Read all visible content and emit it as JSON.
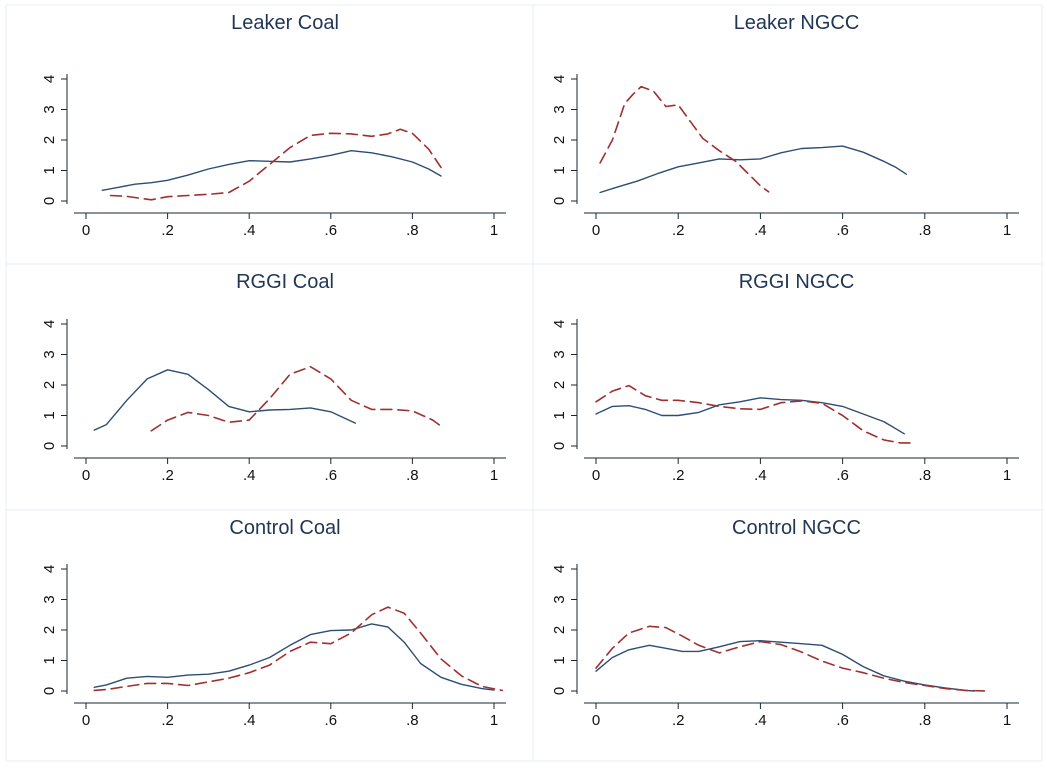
{
  "chart_data": [
    {
      "type": "line",
      "title": "Leaker Coal",
      "xlim": [
        0,
        1
      ],
      "ylim": [
        0,
        4
      ],
      "x_ticks": [
        0,
        0.2,
        0.4,
        0.6,
        0.8,
        1
      ],
      "x_tick_labels": [
        "0",
        ".2",
        ".4",
        ".6",
        ".8",
        "1"
      ],
      "y_ticks": [
        0,
        1,
        2,
        3,
        4
      ],
      "y_tick_labels": [
        "0",
        "1",
        "2",
        "3",
        "4"
      ],
      "series": [
        {
          "style": "solid",
          "color": "#2c4e72",
          "points": [
            [
              0.04,
              0.35
            ],
            [
              0.08,
              0.45
            ],
            [
              0.12,
              0.55
            ],
            [
              0.16,
              0.6
            ],
            [
              0.2,
              0.68
            ],
            [
              0.25,
              0.85
            ],
            [
              0.3,
              1.05
            ],
            [
              0.35,
              1.2
            ],
            [
              0.4,
              1.32
            ],
            [
              0.45,
              1.3
            ],
            [
              0.5,
              1.28
            ],
            [
              0.55,
              1.38
            ],
            [
              0.6,
              1.5
            ],
            [
              0.65,
              1.65
            ],
            [
              0.7,
              1.58
            ],
            [
              0.75,
              1.45
            ],
            [
              0.8,
              1.28
            ],
            [
              0.84,
              1.05
            ],
            [
              0.87,
              0.82
            ]
          ]
        },
        {
          "style": "dashed",
          "color": "#a03030",
          "points": [
            [
              0.06,
              0.18
            ],
            [
              0.1,
              0.15
            ],
            [
              0.16,
              0.04
            ],
            [
              0.2,
              0.14
            ],
            [
              0.25,
              0.18
            ],
            [
              0.3,
              0.22
            ],
            [
              0.35,
              0.28
            ],
            [
              0.4,
              0.65
            ],
            [
              0.45,
              1.2
            ],
            [
              0.5,
              1.75
            ],
            [
              0.55,
              2.15
            ],
            [
              0.6,
              2.22
            ],
            [
              0.65,
              2.2
            ],
            [
              0.7,
              2.12
            ],
            [
              0.74,
              2.2
            ],
            [
              0.77,
              2.35
            ],
            [
              0.8,
              2.22
            ],
            [
              0.84,
              1.7
            ],
            [
              0.87,
              1.1
            ]
          ]
        }
      ]
    },
    {
      "type": "line",
      "title": "Leaker NGCC",
      "xlim": [
        0,
        1
      ],
      "ylim": [
        0,
        4
      ],
      "x_ticks": [
        0,
        0.2,
        0.4,
        0.6,
        0.8,
        1
      ],
      "x_tick_labels": [
        "0",
        ".2",
        ".4",
        ".6",
        ".8",
        "1"
      ],
      "y_ticks": [
        0,
        1,
        2,
        3,
        4
      ],
      "y_tick_labels": [
        "0",
        "1",
        "2",
        "3",
        "4"
      ],
      "series": [
        {
          "style": "solid",
          "color": "#2c4e72",
          "points": [
            [
              0.01,
              0.28
            ],
            [
              0.05,
              0.45
            ],
            [
              0.1,
              0.65
            ],
            [
              0.15,
              0.9
            ],
            [
              0.2,
              1.12
            ],
            [
              0.25,
              1.25
            ],
            [
              0.3,
              1.38
            ],
            [
              0.35,
              1.35
            ],
            [
              0.4,
              1.38
            ],
            [
              0.45,
              1.58
            ],
            [
              0.5,
              1.72
            ],
            [
              0.55,
              1.75
            ],
            [
              0.6,
              1.8
            ],
            [
              0.65,
              1.6
            ],
            [
              0.7,
              1.3
            ],
            [
              0.73,
              1.1
            ],
            [
              0.755,
              0.88
            ]
          ]
        },
        {
          "style": "dashed",
          "color": "#a03030",
          "points": [
            [
              0.01,
              1.25
            ],
            [
              0.04,
              2.0
            ],
            [
              0.07,
              3.2
            ],
            [
              0.09,
              3.5
            ],
            [
              0.11,
              3.75
            ],
            [
              0.14,
              3.6
            ],
            [
              0.17,
              3.1
            ],
            [
              0.2,
              3.15
            ],
            [
              0.23,
              2.6
            ],
            [
              0.26,
              2.05
            ],
            [
              0.3,
              1.65
            ],
            [
              0.34,
              1.3
            ],
            [
              0.37,
              0.9
            ],
            [
              0.4,
              0.5
            ],
            [
              0.42,
              0.3
            ]
          ]
        }
      ]
    },
    {
      "type": "line",
      "title": "RGGI Coal",
      "xlim": [
        0,
        1
      ],
      "ylim": [
        0,
        4
      ],
      "x_ticks": [
        0,
        0.2,
        0.4,
        0.6,
        0.8,
        1
      ],
      "x_tick_labels": [
        "0",
        ".2",
        ".4",
        ".6",
        ".8",
        "1"
      ],
      "y_ticks": [
        0,
        1,
        2,
        3,
        4
      ],
      "y_tick_labels": [
        "0",
        "1",
        "2",
        "3",
        "4"
      ],
      "series": [
        {
          "style": "solid",
          "color": "#2c4e72",
          "points": [
            [
              0.02,
              0.52
            ],
            [
              0.05,
              0.7
            ],
            [
              0.1,
              1.5
            ],
            [
              0.15,
              2.2
            ],
            [
              0.2,
              2.5
            ],
            [
              0.25,
              2.35
            ],
            [
              0.3,
              1.85
            ],
            [
              0.35,
              1.3
            ],
            [
              0.4,
              1.12
            ],
            [
              0.45,
              1.18
            ],
            [
              0.5,
              1.2
            ],
            [
              0.55,
              1.25
            ],
            [
              0.6,
              1.12
            ],
            [
              0.66,
              0.75
            ]
          ]
        },
        {
          "style": "dashed",
          "color": "#a03030",
          "points": [
            [
              0.16,
              0.5
            ],
            [
              0.2,
              0.85
            ],
            [
              0.25,
              1.1
            ],
            [
              0.3,
              1.0
            ],
            [
              0.35,
              0.78
            ],
            [
              0.4,
              0.85
            ],
            [
              0.45,
              1.55
            ],
            [
              0.5,
              2.35
            ],
            [
              0.55,
              2.6
            ],
            [
              0.6,
              2.2
            ],
            [
              0.65,
              1.5
            ],
            [
              0.7,
              1.2
            ],
            [
              0.75,
              1.2
            ],
            [
              0.8,
              1.15
            ],
            [
              0.85,
              0.85
            ],
            [
              0.87,
              0.65
            ]
          ]
        }
      ]
    },
    {
      "type": "line",
      "title": "RGGI NGCC",
      "xlim": [
        0,
        1
      ],
      "ylim": [
        0,
        4
      ],
      "x_ticks": [
        0,
        0.2,
        0.4,
        0.6,
        0.8,
        1
      ],
      "x_tick_labels": [
        "0",
        ".2",
        ".4",
        ".6",
        ".8",
        "1"
      ],
      "y_ticks": [
        0,
        1,
        2,
        3,
        4
      ],
      "y_tick_labels": [
        "0",
        "1",
        "2",
        "3",
        "4"
      ],
      "series": [
        {
          "style": "solid",
          "color": "#2c4e72",
          "points": [
            [
              0.0,
              1.05
            ],
            [
              0.04,
              1.3
            ],
            [
              0.08,
              1.32
            ],
            [
              0.12,
              1.2
            ],
            [
              0.16,
              1.0
            ],
            [
              0.2,
              1.0
            ],
            [
              0.25,
              1.1
            ],
            [
              0.3,
              1.35
            ],
            [
              0.35,
              1.45
            ],
            [
              0.4,
              1.58
            ],
            [
              0.45,
              1.52
            ],
            [
              0.5,
              1.5
            ],
            [
              0.55,
              1.42
            ],
            [
              0.6,
              1.3
            ],
            [
              0.65,
              1.05
            ],
            [
              0.7,
              0.8
            ],
            [
              0.75,
              0.4
            ]
          ]
        },
        {
          "style": "dashed",
          "color": "#a03030",
          "points": [
            [
              0.0,
              1.45
            ],
            [
              0.04,
              1.8
            ],
            [
              0.08,
              1.98
            ],
            [
              0.12,
              1.65
            ],
            [
              0.16,
              1.5
            ],
            [
              0.2,
              1.5
            ],
            [
              0.25,
              1.42
            ],
            [
              0.3,
              1.3
            ],
            [
              0.35,
              1.22
            ],
            [
              0.4,
              1.2
            ],
            [
              0.45,
              1.42
            ],
            [
              0.5,
              1.48
            ],
            [
              0.55,
              1.4
            ],
            [
              0.6,
              1.0
            ],
            [
              0.65,
              0.5
            ],
            [
              0.7,
              0.2
            ],
            [
              0.74,
              0.1
            ],
            [
              0.77,
              0.1
            ]
          ]
        }
      ]
    },
    {
      "type": "line",
      "title": "Control Coal",
      "xlim": [
        0,
        1
      ],
      "ylim": [
        0,
        4
      ],
      "x_ticks": [
        0,
        0.2,
        0.4,
        0.6,
        0.8,
        1
      ],
      "x_tick_labels": [
        "0",
        ".2",
        ".4",
        ".6",
        ".8",
        "1"
      ],
      "y_ticks": [
        0,
        1,
        2,
        3,
        4
      ],
      "y_tick_labels": [
        "0",
        "1",
        "2",
        "3",
        "4"
      ],
      "series": [
        {
          "style": "solid",
          "color": "#2c4e72",
          "points": [
            [
              0.02,
              0.12
            ],
            [
              0.05,
              0.2
            ],
            [
              0.1,
              0.42
            ],
            [
              0.15,
              0.48
            ],
            [
              0.2,
              0.45
            ],
            [
              0.25,
              0.52
            ],
            [
              0.3,
              0.55
            ],
            [
              0.35,
              0.65
            ],
            [
              0.4,
              0.85
            ],
            [
              0.45,
              1.1
            ],
            [
              0.5,
              1.5
            ],
            [
              0.55,
              1.85
            ],
            [
              0.6,
              1.98
            ],
            [
              0.65,
              2.0
            ],
            [
              0.7,
              2.2
            ],
            [
              0.74,
              2.1
            ],
            [
              0.78,
              1.6
            ],
            [
              0.82,
              0.9
            ],
            [
              0.87,
              0.45
            ],
            [
              0.92,
              0.22
            ],
            [
              0.97,
              0.08
            ],
            [
              1.0,
              0.03
            ]
          ]
        },
        {
          "style": "dashed",
          "color": "#a03030",
          "points": [
            [
              0.02,
              0.02
            ],
            [
              0.05,
              0.05
            ],
            [
              0.1,
              0.15
            ],
            [
              0.15,
              0.25
            ],
            [
              0.2,
              0.25
            ],
            [
              0.25,
              0.18
            ],
            [
              0.3,
              0.3
            ],
            [
              0.35,
              0.42
            ],
            [
              0.4,
              0.6
            ],
            [
              0.45,
              0.85
            ],
            [
              0.5,
              1.3
            ],
            [
              0.55,
              1.6
            ],
            [
              0.6,
              1.55
            ],
            [
              0.65,
              1.9
            ],
            [
              0.7,
              2.5
            ],
            [
              0.74,
              2.75
            ],
            [
              0.78,
              2.55
            ],
            [
              0.82,
              1.9
            ],
            [
              0.87,
              1.05
            ],
            [
              0.92,
              0.5
            ],
            [
              0.97,
              0.15
            ],
            [
              1.02,
              0.02
            ]
          ]
        }
      ]
    },
    {
      "type": "line",
      "title": "Control NGCC",
      "xlim": [
        0,
        1
      ],
      "ylim": [
        0,
        4
      ],
      "x_ticks": [
        0,
        0.2,
        0.4,
        0.6,
        0.8,
        1
      ],
      "x_tick_labels": [
        "0",
        ".2",
        ".4",
        ".6",
        ".8",
        "1"
      ],
      "y_ticks": [
        0,
        1,
        2,
        3,
        4
      ],
      "y_tick_labels": [
        "0",
        "1",
        "2",
        "3",
        "4"
      ],
      "series": [
        {
          "style": "solid",
          "color": "#2c4e72",
          "points": [
            [
              0.0,
              0.65
            ],
            [
              0.04,
              1.1
            ],
            [
              0.08,
              1.35
            ],
            [
              0.13,
              1.5
            ],
            [
              0.17,
              1.4
            ],
            [
              0.21,
              1.3
            ],
            [
              0.25,
              1.3
            ],
            [
              0.3,
              1.45
            ],
            [
              0.35,
              1.62
            ],
            [
              0.4,
              1.65
            ],
            [
              0.45,
              1.6
            ],
            [
              0.5,
              1.55
            ],
            [
              0.55,
              1.5
            ],
            [
              0.6,
              1.2
            ],
            [
              0.65,
              0.8
            ],
            [
              0.7,
              0.5
            ],
            [
              0.75,
              0.32
            ],
            [
              0.8,
              0.2
            ],
            [
              0.85,
              0.1
            ],
            [
              0.9,
              0.02
            ],
            [
              0.92,
              0.0
            ]
          ]
        },
        {
          "style": "dashed",
          "color": "#a03030",
          "points": [
            [
              0.0,
              0.75
            ],
            [
              0.04,
              1.4
            ],
            [
              0.08,
              1.9
            ],
            [
              0.13,
              2.12
            ],
            [
              0.17,
              2.08
            ],
            [
              0.21,
              1.8
            ],
            [
              0.25,
              1.5
            ],
            [
              0.3,
              1.25
            ],
            [
              0.35,
              1.45
            ],
            [
              0.4,
              1.62
            ],
            [
              0.45,
              1.52
            ],
            [
              0.5,
              1.28
            ],
            [
              0.55,
              0.98
            ],
            [
              0.6,
              0.75
            ],
            [
              0.65,
              0.6
            ],
            [
              0.7,
              0.42
            ],
            [
              0.75,
              0.28
            ],
            [
              0.8,
              0.18
            ],
            [
              0.85,
              0.08
            ],
            [
              0.9,
              0.02
            ],
            [
              0.95,
              0.0
            ]
          ]
        }
      ]
    }
  ]
}
